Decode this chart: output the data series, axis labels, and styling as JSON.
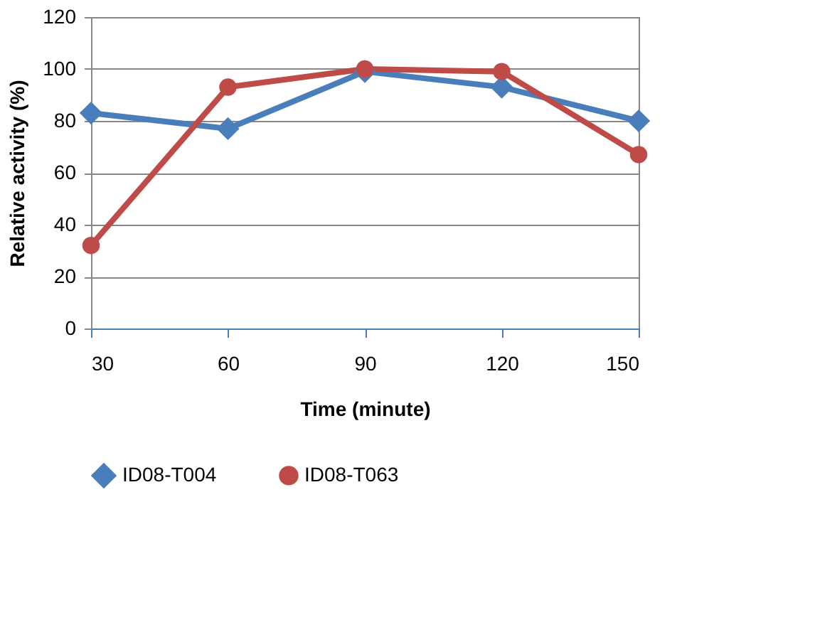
{
  "chart_data": {
    "type": "line",
    "xlabel": "Time (minute)",
    "ylabel": "Relative activity (%)",
    "categories": [
      "30",
      "60",
      "90",
      "120",
      "150"
    ],
    "series": [
      {
        "name": "ID08-T004",
        "color": "#4a7ebb",
        "marker": "diamond",
        "values": [
          83,
          77,
          99,
          93,
          80
        ]
      },
      {
        "name": "ID08-T063",
        "color": "#be4b48",
        "marker": "circle",
        "values": [
          32,
          93,
          100,
          99,
          67
        ]
      }
    ],
    "ylim": [
      0,
      120
    ],
    "yticks": [
      0,
      20,
      40,
      60,
      80,
      100,
      120
    ],
    "grid": "y",
    "legend": "bottom",
    "line_style": "solid"
  }
}
